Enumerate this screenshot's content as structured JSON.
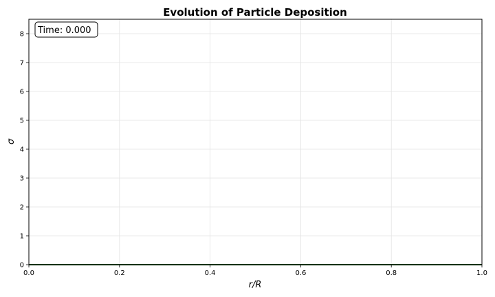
{
  "chart_data": {
    "type": "line",
    "title": "Evolution of Particle Deposition",
    "xlabel": "r/R",
    "ylabel": "σ",
    "xlim": [
      0,
      1
    ],
    "ylim": [
      0,
      8.5
    ],
    "x_ticks": [
      0.0,
      0.2,
      0.4,
      0.6,
      0.8,
      1.0
    ],
    "x_tick_labels": [
      "0.0",
      "0.2",
      "0.4",
      "0.6",
      "0.8",
      "1.0"
    ],
    "y_ticks": [
      0,
      1,
      2,
      3,
      4,
      5,
      6,
      7,
      8
    ],
    "y_tick_labels": [
      "0",
      "1",
      "2",
      "3",
      "4",
      "5",
      "6",
      "7",
      "8"
    ],
    "grid": true,
    "annotation": "Time: 0.000",
    "series": [
      {
        "color": "#1b5e20",
        "x": [
          0.0,
          1.0
        ],
        "y": [
          0,
          0
        ]
      }
    ]
  }
}
